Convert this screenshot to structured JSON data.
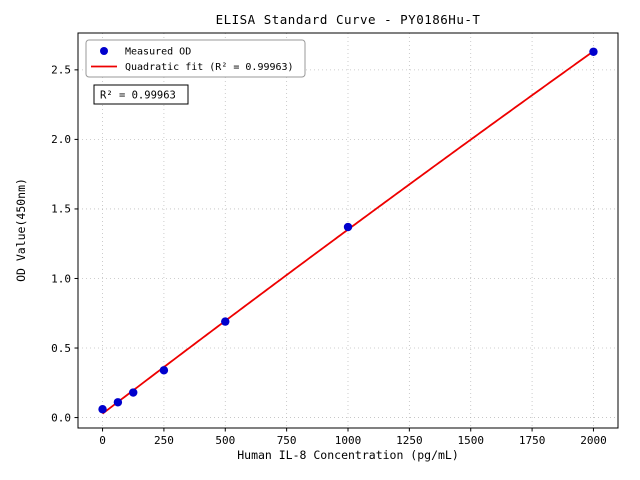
{
  "chart_data": {
    "type": "scatter",
    "title": "ELISA Standard Curve - PY0186Hu-T",
    "xlabel": "Human IL-8 Concentration (pg/mL)",
    "ylabel": "OD Value(450nm)",
    "x": [
      0,
      62.5,
      125,
      250,
      500,
      1000,
      2000
    ],
    "series": [
      {
        "name": "Measured OD",
        "type": "scatter",
        "color": "#0000cd",
        "values": [
          0.06,
          0.11,
          0.18,
          0.34,
          0.69,
          1.37,
          2.63
        ]
      },
      {
        "name": "Quadratic fit (R² = 0.99963)",
        "type": "line",
        "color": "#ee0000",
        "fit": "quadratic"
      }
    ],
    "r_squared_annotation": "R² = 0.99963",
    "xticks": [
      "0",
      "250",
      "500",
      "750",
      "1000",
      "1250",
      "1500",
      "1750",
      "2000"
    ],
    "yticks": [
      "0.0",
      "0.5",
      "1.0",
      "1.5",
      "2.0",
      "2.5"
    ],
    "xlim": [
      -100,
      2100
    ],
    "ylim": [
      -0.075,
      2.765
    ],
    "grid": true,
    "legend_position": "upper-left",
    "colors": {
      "grid": "#aaaaaa",
      "spine": "#000000",
      "background": "#ffffff",
      "tick": "#000000"
    }
  }
}
